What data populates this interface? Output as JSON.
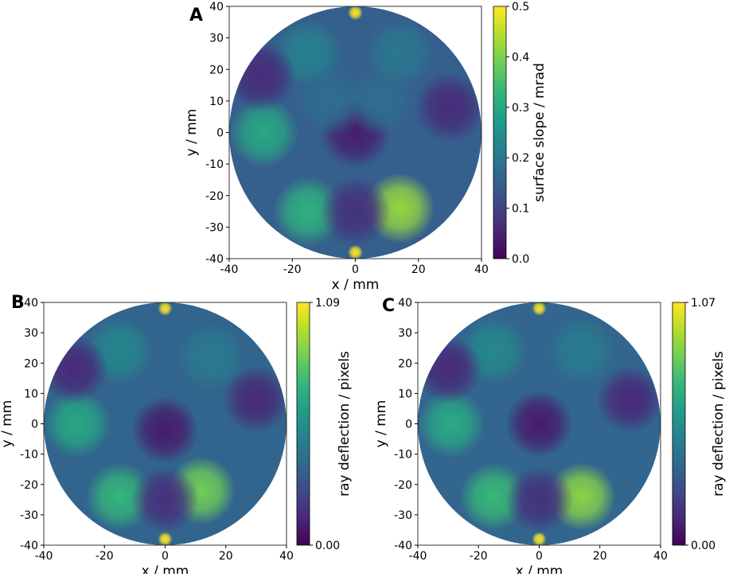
{
  "chart_data": [
    {
      "type": "heatmap",
      "panel_label": "A",
      "xlabel": "x / mm",
      "ylabel": "y / mm",
      "colorbar_label": "surface slope / mrad",
      "xlim": [
        -40,
        40
      ],
      "ylim": [
        -40,
        40
      ],
      "xticks": [
        -40,
        -20,
        0,
        20,
        40
      ],
      "yticks": [
        -40,
        -30,
        -20,
        -10,
        0,
        10,
        20,
        30,
        40
      ],
      "clim": [
        0,
        0.5
      ],
      "cticks": [
        {
          "value": 0,
          "label": "0.0"
        },
        0.1,
        0.2,
        0.3,
        0.4,
        0.5
      ],
      "base_value": 0.15,
      "spots": {
        "x": [
          -29,
          -15,
          14,
          -15,
          14,
          0,
          0,
          0,
          -30,
          30,
          0,
          8,
          -8
        ],
        "y": [
          0,
          -25,
          -24,
          25,
          25,
          38,
          -38,
          0,
          18,
          8,
          -25,
          10,
          10
        ],
        "values": [
          0.3,
          0.32,
          0.42,
          0.22,
          0.2,
          0.5,
          0.5,
          0.04,
          0.06,
          0.06,
          0.07,
          0.18,
          0.18
        ]
      }
    },
    {
      "type": "heatmap",
      "panel_label": "B",
      "xlabel": "x / mm",
      "ylabel": "y / mm",
      "colorbar_label": "ray deflection / pixels",
      "xlim": [
        -40,
        40
      ],
      "ylim": [
        -40,
        40
      ],
      "xticks": [
        -40,
        -20,
        0,
        20,
        40
      ],
      "yticks": [
        -40,
        -30,
        -20,
        -10,
        0,
        10,
        20,
        30,
        40
      ],
      "clim": [
        0,
        1.09
      ],
      "cticks": [
        {
          "value": 0,
          "label": "0.00"
        },
        1.09
      ],
      "base_value": 0.35,
      "spots": {
        "x": [
          -29,
          -15,
          12,
          -15,
          15,
          0,
          0,
          0,
          -30,
          30,
          0
        ],
        "y": [
          0,
          -24,
          -22,
          24,
          22,
          38,
          -38,
          -2,
          18,
          8,
          -25
        ],
        "values": [
          0.65,
          0.72,
          0.85,
          0.5,
          0.45,
          1.09,
          1.09,
          0.08,
          0.12,
          0.12,
          0.15
        ]
      }
    },
    {
      "type": "heatmap",
      "panel_label": "C",
      "xlabel": "x / mm",
      "ylabel": "y / mm",
      "colorbar_label": "ray deflection / pixels",
      "xlim": [
        -40,
        40
      ],
      "ylim": [
        -40,
        40
      ],
      "xticks": [
        -40,
        -20,
        0,
        20,
        40
      ],
      "yticks": [
        -40,
        -30,
        -20,
        -10,
        0,
        10,
        20,
        30,
        40
      ],
      "clim": [
        0,
        1.07
      ],
      "cticks": [
        {
          "value": 0,
          "label": "0.00"
        },
        1.07
      ],
      "base_value": 0.35,
      "spots": {
        "x": [
          -29,
          -15,
          14,
          -15,
          14,
          0,
          0,
          0,
          -30,
          30,
          0
        ],
        "y": [
          0,
          -24,
          -24,
          24,
          24,
          38,
          -38,
          0,
          18,
          8,
          -25
        ],
        "values": [
          0.65,
          0.72,
          0.88,
          0.5,
          0.45,
          1.07,
          1.07,
          0.08,
          0.12,
          0.12,
          0.15
        ]
      }
    }
  ]
}
